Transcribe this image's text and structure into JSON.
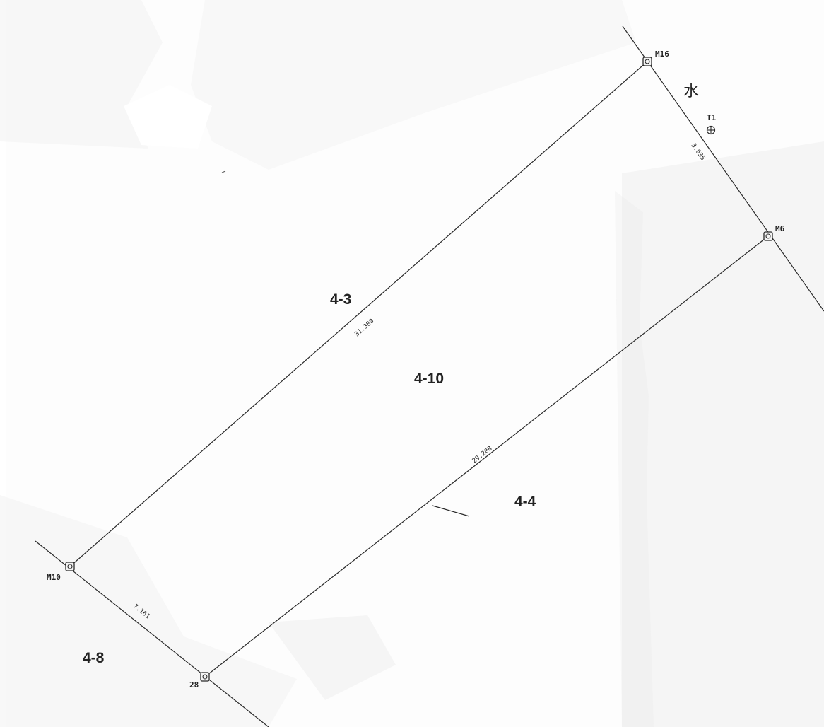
{
  "parcels": {
    "p4_3": "4-3",
    "p4_10": "4-10",
    "p4_4": "4-4",
    "p4_8": "4-8"
  },
  "water": "水",
  "points": {
    "m16": "M16",
    "m6": "M6",
    "m10": "M10",
    "p28": "28",
    "t1": "T1"
  },
  "dimensions": {
    "north_side": "31.380",
    "south_side": "29.208",
    "east_side": "3.635",
    "west_side": "7.161"
  },
  "colors": {
    "line": "#2a2a2a",
    "background": "#ffffff",
    "text": "#222222"
  }
}
